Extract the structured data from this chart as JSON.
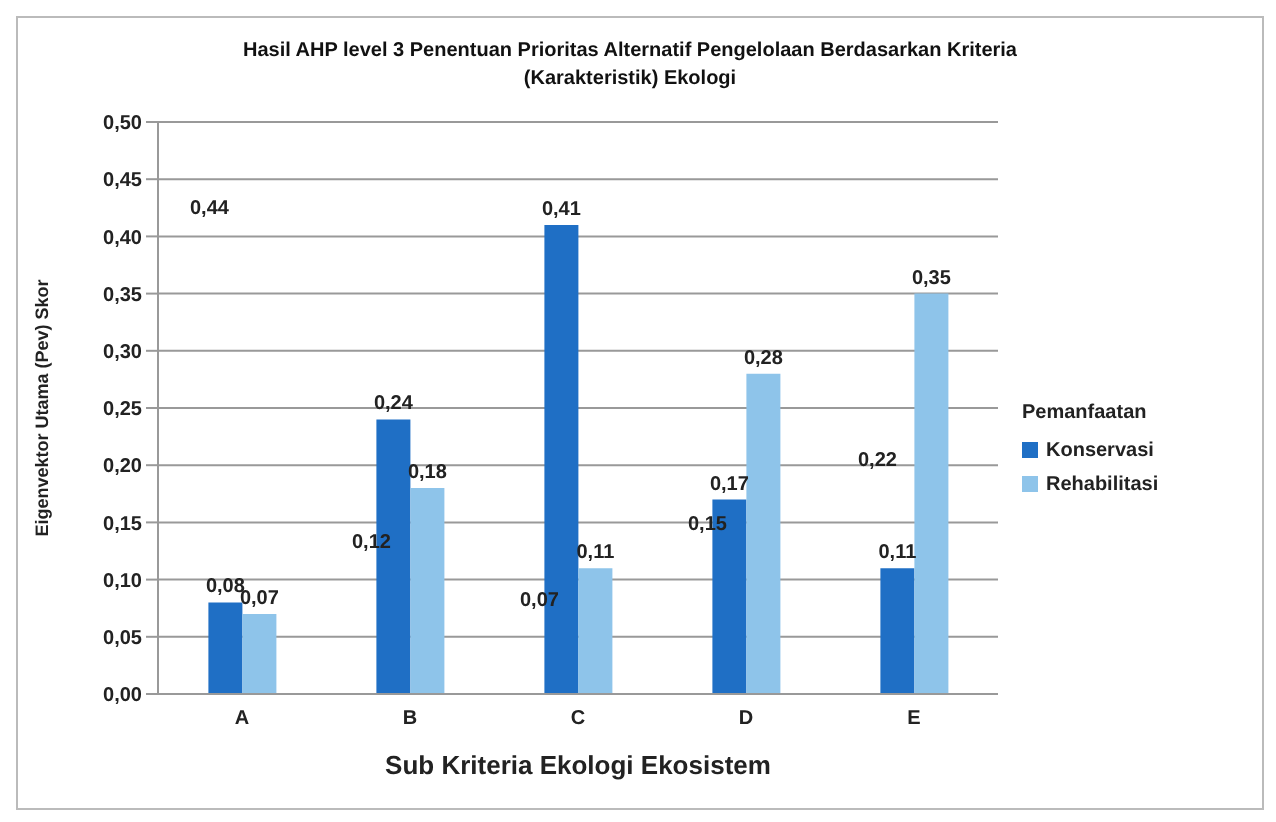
{
  "chart_data": {
    "type": "bar",
    "title": "Hasil AHP level 3 Penentuan Prioritas Alternatif Pengelolaan Berdasarkan  Kriteria (Karakteristik)  Ekologi",
    "xlabel": "Sub Kriteria Ekologi Ekosistem",
    "ylabel": "Eigenvektor Utama (Pev) Skor",
    "legend_title": "Pemanfaatan",
    "categories": [
      "A",
      "B",
      "C",
      "D",
      "E"
    ],
    "series": [
      {
        "name": "Konservasi",
        "color": "#1f6fc5",
        "values": [
          0.08,
          0.24,
          0.41,
          0.17,
          0.11
        ],
        "value_labels": [
          "0,08",
          "0,24",
          "0,41",
          "0,17",
          "0,11"
        ]
      },
      {
        "name": "Rehabilitasi",
        "color": "#8ec4ea",
        "values": [
          0.07,
          0.18,
          0.11,
          0.28,
          0.35
        ],
        "value_labels": [
          "0,07",
          "0,18",
          "0,11",
          "0,28",
          "0,35"
        ]
      }
    ],
    "annotations": [
      "0,44",
      "0,12",
      "0,07",
      "0,15",
      "0,22"
    ],
    "ylim": [
      0,
      0.5
    ],
    "yticks": [
      {
        "value": 0,
        "label": "0,00"
      },
      {
        "value": 0.05,
        "label": "0,05"
      },
      {
        "value": 0.1,
        "label": "0,10"
      },
      {
        "value": 0.15,
        "label": "0,15"
      },
      {
        "value": 0.2,
        "label": "0,20"
      },
      {
        "value": 0.25,
        "label": "0,25"
      },
      {
        "value": 0.3,
        "label": "0,30"
      },
      {
        "value": 0.35,
        "label": "0,35"
      },
      {
        "value": 0.4,
        "label": "0,40"
      },
      {
        "value": 0.45,
        "label": "0,45"
      },
      {
        "value": 0.5,
        "label": "0,50"
      }
    ],
    "grid": "y",
    "legend": "right"
  }
}
